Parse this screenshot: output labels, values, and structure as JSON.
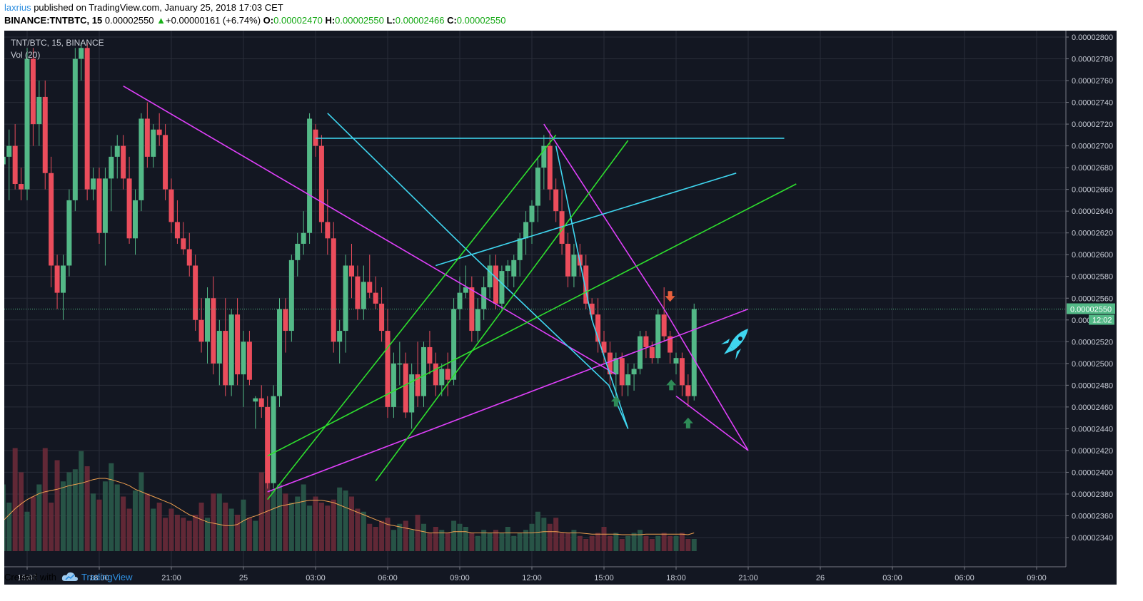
{
  "header": {
    "author": "laxrius",
    "published_text": "published on TradingView.com, January 25, 2018 17:03 CET",
    "symbol": "BINANCE:TNTBTC, 15",
    "last": "0.00002550",
    "up_arrow": "▲",
    "change": "+0.00000161 (+6.74%)",
    "o_label": "O:",
    "o_value": "0.00002470",
    "h_label": "H:",
    "h_value": "0.00002550",
    "l_label": "L:",
    "l_value": "0.00002466",
    "c_label": "C:",
    "c_value": "0.00002550"
  },
  "legend": {
    "line1": "TNT/BTC, 15, BINANCE",
    "line2": "Vol (20)"
  },
  "footer": {
    "created_with": "Created with",
    "brand": "TradingView"
  },
  "colors": {
    "bg": "#131722",
    "up": "#53b987",
    "down": "#eb4d5c",
    "grid": "#2a2e39",
    "magenta": "#e040fb",
    "cyan": "#3fd6f0",
    "green": "#2ee02e",
    "ma": "#f0a050"
  },
  "chart_data": {
    "type": "candlestick",
    "price_axis": {
      "range": [
        2.33e-05,
        2.81e-05
      ],
      "ticks": [
        "0.00002800",
        "0.00002780",
        "0.00002760",
        "0.00002740",
        "0.00002720",
        "0.00002700",
        "0.00002680",
        "0.00002660",
        "0.00002640",
        "0.00002620",
        "0.00002600",
        "0.00002580",
        "0.00002560",
        "0.00002550",
        "0.00002540",
        "0.00002520",
        "0.00002500",
        "0.00002480",
        "0.00002460",
        "0.00002440",
        "0.00002420",
        "0.00002400",
        "0.00002380",
        "0.00002360",
        "0.00002340"
      ],
      "last_price_label": "0.00002550",
      "countdown_label": "12:02"
    },
    "time_axis": {
      "ticks": [
        "15:00",
        "18:00",
        "21:00",
        "25",
        "03:00",
        "06:00",
        "09:00",
        "12:00",
        "15:00",
        "18:00",
        "21:00",
        "26",
        "03:00",
        "06:00",
        "09:00"
      ],
      "tick_hours": [
        15,
        18,
        21,
        24,
        27,
        30,
        33,
        36,
        39,
        42,
        45,
        48,
        51,
        54,
        57
      ]
    },
    "candles": [
      {
        "t": 14.0,
        "o": 2.683,
        "h": 2.72,
        "l": 2.66,
        "c": 2.69
      },
      {
        "t": 14.25,
        "o": 2.69,
        "h": 2.715,
        "l": 2.65,
        "c": 2.7
      },
      {
        "t": 14.5,
        "o": 2.7,
        "h": 2.72,
        "l": 2.66,
        "c": 2.665
      },
      {
        "t": 14.75,
        "o": 2.665,
        "h": 2.68,
        "l": 2.65,
        "c": 2.66
      },
      {
        "t": 15.0,
        "o": 2.66,
        "h": 2.79,
        "l": 2.65,
        "c": 2.78
      },
      {
        "t": 15.25,
        "o": 2.78,
        "h": 2.79,
        "l": 2.7,
        "c": 2.72
      },
      {
        "t": 15.5,
        "o": 2.72,
        "h": 2.76,
        "l": 2.7,
        "c": 2.745
      },
      {
        "t": 15.75,
        "o": 2.745,
        "h": 2.76,
        "l": 2.66,
        "c": 2.675
      },
      {
        "t": 16.0,
        "o": 2.675,
        "h": 2.69,
        "l": 2.57,
        "c": 2.59
      },
      {
        "t": 16.25,
        "o": 2.59,
        "h": 2.6,
        "l": 2.55,
        "c": 2.565
      },
      {
        "t": 16.5,
        "o": 2.565,
        "h": 2.6,
        "l": 2.54,
        "c": 2.59
      },
      {
        "t": 16.75,
        "o": 2.59,
        "h": 2.66,
        "l": 2.58,
        "c": 2.65
      },
      {
        "t": 17.0,
        "o": 2.65,
        "h": 2.79,
        "l": 2.64,
        "c": 2.78
      },
      {
        "t": 17.25,
        "o": 2.78,
        "h": 2.795,
        "l": 2.76,
        "c": 2.79
      },
      {
        "t": 17.5,
        "o": 2.79,
        "h": 2.795,
        "l": 2.65,
        "c": 2.66
      },
      {
        "t": 17.75,
        "o": 2.66,
        "h": 2.68,
        "l": 2.65,
        "c": 2.67
      },
      {
        "t": 18.0,
        "o": 2.67,
        "h": 2.68,
        "l": 2.61,
        "c": 2.62
      },
      {
        "t": 18.25,
        "o": 2.62,
        "h": 2.68,
        "l": 2.59,
        "c": 2.67
      },
      {
        "t": 18.5,
        "o": 2.67,
        "h": 2.7,
        "l": 2.64,
        "c": 2.69
      },
      {
        "t": 18.75,
        "o": 2.69,
        "h": 2.71,
        "l": 2.67,
        "c": 2.7
      },
      {
        "t": 19.0,
        "o": 2.7,
        "h": 2.71,
        "l": 2.66,
        "c": 2.67
      },
      {
        "t": 19.25,
        "o": 2.67,
        "h": 2.69,
        "l": 2.61,
        "c": 2.615
      },
      {
        "t": 19.5,
        "o": 2.615,
        "h": 2.66,
        "l": 2.6,
        "c": 2.65
      },
      {
        "t": 19.75,
        "o": 2.65,
        "h": 2.73,
        "l": 2.64,
        "c": 2.725
      },
      {
        "t": 20.0,
        "o": 2.725,
        "h": 2.74,
        "l": 2.68,
        "c": 2.69
      },
      {
        "t": 20.25,
        "o": 2.69,
        "h": 2.72,
        "l": 2.68,
        "c": 2.715
      },
      {
        "t": 20.5,
        "o": 2.715,
        "h": 2.73,
        "l": 2.7,
        "c": 2.71
      },
      {
        "t": 20.75,
        "o": 2.71,
        "h": 2.72,
        "l": 2.65,
        "c": 2.66
      },
      {
        "t": 21.0,
        "o": 2.66,
        "h": 2.67,
        "l": 2.62,
        "c": 2.63
      },
      {
        "t": 21.25,
        "o": 2.63,
        "h": 2.65,
        "l": 2.61,
        "c": 2.615
      },
      {
        "t": 21.5,
        "o": 2.615,
        "h": 2.63,
        "l": 2.6,
        "c": 2.605
      },
      {
        "t": 21.75,
        "o": 2.605,
        "h": 2.62,
        "l": 2.58,
        "c": 2.59
      },
      {
        "t": 22.0,
        "o": 2.59,
        "h": 2.6,
        "l": 2.53,
        "c": 2.54
      },
      {
        "t": 22.25,
        "o": 2.54,
        "h": 2.56,
        "l": 2.51,
        "c": 2.52
      },
      {
        "t": 22.5,
        "o": 2.52,
        "h": 2.57,
        "l": 2.5,
        "c": 2.56
      },
      {
        "t": 22.75,
        "o": 2.56,
        "h": 2.58,
        "l": 2.49,
        "c": 2.5
      },
      {
        "t": 23.0,
        "o": 2.5,
        "h": 2.54,
        "l": 2.48,
        "c": 2.53
      },
      {
        "t": 23.25,
        "o": 2.53,
        "h": 2.56,
        "l": 2.47,
        "c": 2.48
      },
      {
        "t": 23.5,
        "o": 2.48,
        "h": 2.55,
        "l": 2.47,
        "c": 2.545
      },
      {
        "t": 23.75,
        "o": 2.545,
        "h": 2.56,
        "l": 2.48,
        "c": 2.49
      },
      {
        "t": 24.0,
        "o": 2.49,
        "h": 2.53,
        "l": 2.46,
        "c": 2.52
      },
      {
        "t": 24.25,
        "o": 2.52,
        "h": 2.53,
        "l": 2.48,
        "c": 2.485
      },
      {
        "t": 24.5,
        "o": 2.465,
        "h": 2.47,
        "l": 2.44,
        "c": 2.468
      },
      {
        "t": 24.75,
        "o": 2.468,
        "h": 2.48,
        "l": 2.45,
        "c": 2.46
      },
      {
        "t": 25.0,
        "o": 2.46,
        "h": 2.47,
        "l": 2.385,
        "c": 2.39
      },
      {
        "t": 25.25,
        "o": 2.39,
        "h": 2.48,
        "l": 2.385,
        "c": 2.47
      },
      {
        "t": 25.5,
        "o": 2.47,
        "h": 2.56,
        "l": 2.46,
        "c": 2.55
      },
      {
        "t": 25.75,
        "o": 2.55,
        "h": 2.56,
        "l": 2.51,
        "c": 2.53
      },
      {
        "t": 26.0,
        "o": 2.53,
        "h": 2.6,
        "l": 2.52,
        "c": 2.595
      },
      {
        "t": 26.25,
        "o": 2.595,
        "h": 2.62,
        "l": 2.58,
        "c": 2.61
      },
      {
        "t": 26.5,
        "o": 2.61,
        "h": 2.64,
        "l": 2.6,
        "c": 2.62
      },
      {
        "t": 26.75,
        "o": 2.62,
        "h": 2.73,
        "l": 2.61,
        "c": 2.725
      },
      {
        "t": 27.0,
        "o": 2.715,
        "h": 2.72,
        "l": 2.69,
        "c": 2.7
      },
      {
        "t": 27.25,
        "o": 2.7,
        "h": 2.71,
        "l": 2.62,
        "c": 2.63
      },
      {
        "t": 27.5,
        "o": 2.63,
        "h": 2.66,
        "l": 2.6,
        "c": 2.615
      },
      {
        "t": 27.75,
        "o": 2.615,
        "h": 2.63,
        "l": 2.51,
        "c": 2.52
      },
      {
        "t": 28.0,
        "o": 2.52,
        "h": 2.54,
        "l": 2.5,
        "c": 2.53
      },
      {
        "t": 28.25,
        "o": 2.53,
        "h": 2.6,
        "l": 2.51,
        "c": 2.59
      },
      {
        "t": 28.5,
        "o": 2.59,
        "h": 2.61,
        "l": 2.56,
        "c": 2.58
      },
      {
        "t": 28.75,
        "o": 2.58,
        "h": 2.59,
        "l": 2.54,
        "c": 2.55
      },
      {
        "t": 29.0,
        "o": 2.55,
        "h": 2.59,
        "l": 2.54,
        "c": 2.575
      },
      {
        "t": 29.25,
        "o": 2.575,
        "h": 2.6,
        "l": 2.56,
        "c": 2.565
      },
      {
        "t": 29.5,
        "o": 2.565,
        "h": 2.58,
        "l": 2.55,
        "c": 2.555
      },
      {
        "t": 29.75,
        "o": 2.555,
        "h": 2.57,
        "l": 2.52,
        "c": 2.53
      },
      {
        "t": 30.0,
        "o": 2.53,
        "h": 2.55,
        "l": 2.45,
        "c": 2.46
      },
      {
        "t": 30.25,
        "o": 2.46,
        "h": 2.51,
        "l": 2.45,
        "c": 2.5
      },
      {
        "t": 30.5,
        "o": 2.5,
        "h": 2.52,
        "l": 2.48,
        "c": 2.5
      },
      {
        "t": 30.75,
        "o": 2.5,
        "h": 2.51,
        "l": 2.45,
        "c": 2.455
      },
      {
        "t": 31.0,
        "o": 2.455,
        "h": 2.5,
        "l": 2.44,
        "c": 2.49
      },
      {
        "t": 31.25,
        "o": 2.49,
        "h": 2.52,
        "l": 2.46,
        "c": 2.47
      },
      {
        "t": 31.5,
        "o": 2.47,
        "h": 2.52,
        "l": 2.46,
        "c": 2.515
      },
      {
        "t": 31.75,
        "o": 2.515,
        "h": 2.53,
        "l": 2.49,
        "c": 2.5
      },
      {
        "t": 32.0,
        "o": 2.5,
        "h": 2.51,
        "l": 2.47,
        "c": 2.48
      },
      {
        "t": 32.25,
        "o": 2.48,
        "h": 2.5,
        "l": 2.47,
        "c": 2.495
      },
      {
        "t": 32.5,
        "o": 2.495,
        "h": 2.51,
        "l": 2.47,
        "c": 2.485
      },
      {
        "t": 32.75,
        "o": 2.485,
        "h": 2.56,
        "l": 2.48,
        "c": 2.55
      },
      {
        "t": 33.0,
        "o": 2.55,
        "h": 2.58,
        "l": 2.54,
        "c": 2.565
      },
      {
        "t": 33.25,
        "o": 2.565,
        "h": 2.59,
        "l": 2.56,
        "c": 2.57
      },
      {
        "t": 33.5,
        "o": 2.57,
        "h": 2.58,
        "l": 2.52,
        "c": 2.53
      },
      {
        "t": 33.75,
        "o": 2.53,
        "h": 2.56,
        "l": 2.52,
        "c": 2.55
      },
      {
        "t": 34.0,
        "o": 2.55,
        "h": 2.58,
        "l": 2.54,
        "c": 2.57
      },
      {
        "t": 34.25,
        "o": 2.57,
        "h": 2.6,
        "l": 2.56,
        "c": 2.59
      },
      {
        "t": 34.5,
        "o": 2.59,
        "h": 2.6,
        "l": 2.55,
        "c": 2.555
      },
      {
        "t": 34.75,
        "o": 2.555,
        "h": 2.59,
        "l": 2.55,
        "c": 2.585
      },
      {
        "t": 35.0,
        "o": 2.585,
        "h": 2.595,
        "l": 2.57,
        "c": 2.59
      },
      {
        "t": 35.25,
        "o": 2.58,
        "h": 2.6,
        "l": 2.57,
        "c": 2.595
      },
      {
        "t": 35.5,
        "o": 2.595,
        "h": 2.62,
        "l": 2.58,
        "c": 2.615
      },
      {
        "t": 35.75,
        "o": 2.615,
        "h": 2.64,
        "l": 2.6,
        "c": 2.63
      },
      {
        "t": 36.0,
        "o": 2.63,
        "h": 2.65,
        "l": 2.61,
        "c": 2.645
      },
      {
        "t": 36.25,
        "o": 2.645,
        "h": 2.69,
        "l": 2.63,
        "c": 2.68
      },
      {
        "t": 36.5,
        "o": 2.68,
        "h": 2.71,
        "l": 2.66,
        "c": 2.7
      },
      {
        "t": 36.75,
        "o": 2.7,
        "h": 2.715,
        "l": 2.65,
        "c": 2.66
      },
      {
        "t": 37.0,
        "o": 2.66,
        "h": 2.67,
        "l": 2.63,
        "c": 2.64
      },
      {
        "t": 37.25,
        "o": 2.64,
        "h": 2.66,
        "l": 2.6,
        "c": 2.61
      },
      {
        "t": 37.5,
        "o": 2.61,
        "h": 2.62,
        "l": 2.57,
        "c": 2.58
      },
      {
        "t": 37.75,
        "o": 2.58,
        "h": 2.61,
        "l": 2.57,
        "c": 2.6
      },
      {
        "t": 38.0,
        "o": 2.6,
        "h": 2.61,
        "l": 2.58,
        "c": 2.59
      },
      {
        "t": 38.25,
        "o": 2.59,
        "h": 2.6,
        "l": 2.55,
        "c": 2.555
      },
      {
        "t": 38.5,
        "o": 2.555,
        "h": 2.56,
        "l": 2.54,
        "c": 2.545
      },
      {
        "t": 38.75,
        "o": 2.545,
        "h": 2.56,
        "l": 2.51,
        "c": 2.52
      },
      {
        "t": 39.0,
        "o": 2.52,
        "h": 2.53,
        "l": 2.5,
        "c": 2.51
      },
      {
        "t": 39.25,
        "o": 2.51,
        "h": 2.52,
        "l": 2.48,
        "c": 2.49
      },
      {
        "t": 39.5,
        "o": 2.49,
        "h": 2.51,
        "l": 2.47,
        "c": 2.505
      },
      {
        "t": 39.75,
        "o": 2.505,
        "h": 2.51,
        "l": 2.47,
        "c": 2.48
      },
      {
        "t": 40.0,
        "o": 2.48,
        "h": 2.5,
        "l": 2.47,
        "c": 2.49
      },
      {
        "t": 40.25,
        "o": 2.49,
        "h": 2.5,
        "l": 2.475,
        "c": 2.495
      },
      {
        "t": 40.5,
        "o": 2.495,
        "h": 2.53,
        "l": 2.49,
        "c": 2.525
      },
      {
        "t": 40.75,
        "o": 2.525,
        "h": 2.53,
        "l": 2.505,
        "c": 2.515
      },
      {
        "t": 41.0,
        "o": 2.515,
        "h": 2.52,
        "l": 2.5,
        "c": 2.505
      },
      {
        "t": 41.25,
        "o": 2.505,
        "h": 2.55,
        "l": 2.5,
        "c": 2.545
      },
      {
        "t": 41.5,
        "o": 2.545,
        "h": 2.57,
        "l": 2.52,
        "c": 2.525
      },
      {
        "t": 41.75,
        "o": 2.525,
        "h": 2.53,
        "l": 2.5,
        "c": 2.51
      },
      {
        "t": 42.0,
        "o": 2.5,
        "h": 2.51,
        "l": 2.49,
        "c": 2.505
      },
      {
        "t": 42.25,
        "o": 2.505,
        "h": 2.51,
        "l": 2.47,
        "c": 2.48
      },
      {
        "t": 42.5,
        "o": 2.48,
        "h": 2.49,
        "l": 2.46,
        "c": 2.47
      },
      {
        "t": 42.75,
        "o": 2.47,
        "h": 2.555,
        "l": 2.466,
        "c": 2.55
      }
    ],
    "volumes": [
      110,
      80,
      170,
      130,
      65,
      90,
      110,
      170,
      80,
      150,
      115,
      130,
      135,
      165,
      140,
      95,
      85,
      115,
      145,
      110,
      90,
      70,
      100,
      130,
      95,
      70,
      80,
      55,
      70,
      60,
      55,
      50,
      60,
      80,
      55,
      95,
      95,
      80,
      70,
      60,
      85,
      55,
      50,
      130,
      125,
      100,
      110,
      95,
      80,
      90,
      110,
      75,
      90,
      80,
      75,
      85,
      105,
      100,
      90,
      70,
      65,
      45,
      40,
      50,
      55,
      35,
      45,
      50,
      35,
      60,
      45,
      30,
      40,
      35,
      30,
      50,
      45,
      40,
      30,
      25,
      35,
      30,
      35,
      30,
      40,
      25,
      30,
      35,
      45,
      65,
      55,
      45,
      55,
      30,
      30,
      35,
      25,
      20,
      25,
      30,
      40,
      25,
      30,
      20,
      25,
      30,
      35,
      25,
      20,
      25,
      30,
      25,
      25,
      30,
      20
    ],
    "volume_ma": [
      50,
      60,
      70,
      78,
      85,
      90,
      95,
      98,
      100,
      102,
      105,
      108,
      110,
      112,
      115,
      118,
      120,
      120,
      118,
      115,
      112,
      108,
      102,
      98,
      94,
      90,
      86,
      82,
      78,
      72,
      66,
      60,
      56,
      52,
      48,
      46,
      44,
      42,
      42,
      44,
      50,
      55,
      58,
      62,
      66,
      70,
      74,
      76,
      78,
      80,
      82,
      84,
      84,
      84,
      82,
      80,
      76,
      72,
      68,
      64,
      60,
      56,
      52,
      48,
      44,
      42,
      40,
      38,
      36,
      34,
      32,
      30,
      30,
      30,
      30,
      32,
      32,
      32,
      30,
      30,
      30,
      30,
      30,
      30,
      30,
      30,
      30,
      30,
      30,
      31,
      32,
      32,
      32,
      31,
      30,
      30,
      30,
      29,
      28,
      28,
      28,
      28,
      28,
      27,
      27,
      27,
      27,
      28,
      28,
      28,
      28,
      28,
      28,
      28,
      27
    ],
    "drawings": {
      "magenta": [
        [
          [
            19.0,
            2.755
          ],
          [
            39.5,
            2.49
          ]
        ],
        [
          [
            25.0,
            2.382
          ],
          [
            45.0,
            2.55
          ]
        ],
        [
          [
            36.5,
            2.72
          ],
          [
            41.5,
            2.55
          ],
          [
            45.0,
            2.42
          ],
          [
            42.0,
            2.47
          ]
        ]
      ],
      "cyan": [
        [
          [
            27.0,
            2.707
          ],
          [
            46.5,
            2.707
          ]
        ],
        [
          [
            32.0,
            2.59
          ],
          [
            44.5,
            2.675
          ]
        ],
        [
          [
            27.5,
            2.73
          ],
          [
            33.5,
            2.6
          ],
          [
            39.2,
            2.48
          ],
          [
            40.0,
            2.44
          ],
          [
            38.5,
            2.54
          ],
          [
            37.0,
            2.7
          ]
        ]
      ],
      "green": [
        [
          [
            25.0,
            2.375
          ],
          [
            37.0,
            2.71
          ]
        ],
        [
          [
            29.5,
            2.392
          ],
          [
            40.0,
            2.705
          ]
        ],
        [
          [
            25.0,
            2.415
          ],
          [
            47.0,
            2.665
          ]
        ]
      ]
    },
    "markers": [
      {
        "t": 41.75,
        "p": 2.562,
        "dir": "down"
      },
      {
        "t": 39.5,
        "p": 2.465,
        "dir": "up"
      },
      {
        "t": 41.8,
        "p": 2.48,
        "dir": "up"
      },
      {
        "t": 42.5,
        "p": 2.445,
        "dir": "up"
      }
    ],
    "ylim": [
      2.33,
      2.81
    ],
    "price_scale_note": "x1e-5 BTC"
  }
}
